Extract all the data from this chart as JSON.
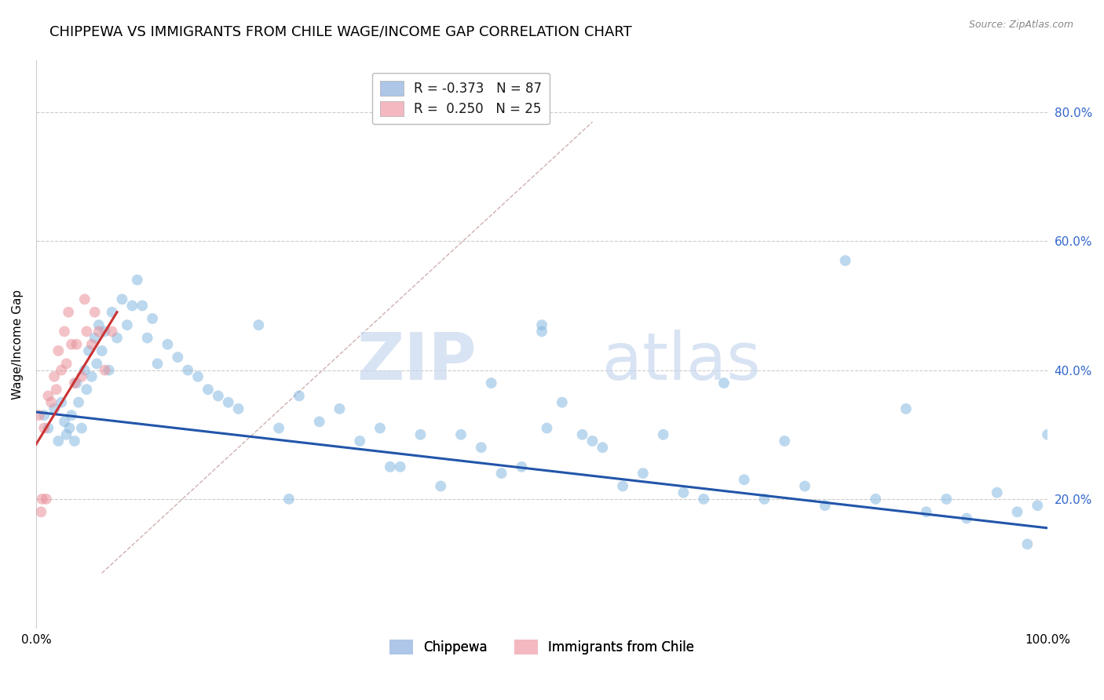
{
  "title": "CHIPPEWA VS IMMIGRANTS FROM CHILE WAGE/INCOME GAP CORRELATION CHART",
  "source": "Source: ZipAtlas.com",
  "ylabel": "Wage/Income Gap",
  "legend_entries": [
    {
      "label": "R = -0.373   N = 87",
      "color": "#aec6e8"
    },
    {
      "label": "R =  0.250   N = 25",
      "color": "#f4b8c1"
    }
  ],
  "legend_bottom": [
    {
      "label": "Chippewa",
      "color": "#aec6e8"
    },
    {
      "label": "Immigrants from Chile",
      "color": "#f4b8c1"
    }
  ],
  "blue_scatter_x": [
    0.008,
    0.012,
    0.018,
    0.022,
    0.025,
    0.028,
    0.03,
    0.033,
    0.035,
    0.038,
    0.04,
    0.042,
    0.045,
    0.048,
    0.05,
    0.052,
    0.055,
    0.058,
    0.06,
    0.062,
    0.065,
    0.068,
    0.072,
    0.075,
    0.08,
    0.085,
    0.09,
    0.095,
    0.1,
    0.105,
    0.11,
    0.115,
    0.12,
    0.13,
    0.14,
    0.15,
    0.16,
    0.17,
    0.18,
    0.19,
    0.2,
    0.22,
    0.24,
    0.26,
    0.28,
    0.3,
    0.32,
    0.34,
    0.36,
    0.38,
    0.4,
    0.42,
    0.44,
    0.46,
    0.48,
    0.5,
    0.52,
    0.54,
    0.56,
    0.58,
    0.6,
    0.62,
    0.64,
    0.66,
    0.68,
    0.7,
    0.72,
    0.74,
    0.76,
    0.78,
    0.8,
    0.83,
    0.86,
    0.88,
    0.9,
    0.92,
    0.95,
    0.97,
    0.98,
    0.99,
    1.0,
    0.5,
    0.505,
    0.35,
    0.25,
    0.45,
    0.55
  ],
  "blue_scatter_y": [
    0.33,
    0.31,
    0.34,
    0.29,
    0.35,
    0.32,
    0.3,
    0.31,
    0.33,
    0.29,
    0.38,
    0.35,
    0.31,
    0.4,
    0.37,
    0.43,
    0.39,
    0.45,
    0.41,
    0.47,
    0.43,
    0.46,
    0.4,
    0.49,
    0.45,
    0.51,
    0.47,
    0.5,
    0.54,
    0.5,
    0.45,
    0.48,
    0.41,
    0.44,
    0.42,
    0.4,
    0.39,
    0.37,
    0.36,
    0.35,
    0.34,
    0.47,
    0.31,
    0.36,
    0.32,
    0.34,
    0.29,
    0.31,
    0.25,
    0.3,
    0.22,
    0.3,
    0.28,
    0.24,
    0.25,
    0.46,
    0.35,
    0.3,
    0.28,
    0.22,
    0.24,
    0.3,
    0.21,
    0.2,
    0.38,
    0.23,
    0.2,
    0.29,
    0.22,
    0.19,
    0.57,
    0.2,
    0.34,
    0.18,
    0.2,
    0.17,
    0.21,
    0.18,
    0.13,
    0.19,
    0.3,
    0.47,
    0.31,
    0.25,
    0.2,
    0.38,
    0.29
  ],
  "pink_scatter_x": [
    0.003,
    0.006,
    0.008,
    0.01,
    0.012,
    0.015,
    0.018,
    0.02,
    0.022,
    0.025,
    0.028,
    0.03,
    0.032,
    0.035,
    0.038,
    0.04,
    0.045,
    0.048,
    0.05,
    0.055,
    0.058,
    0.062,
    0.068,
    0.075,
    0.005
  ],
  "pink_scatter_y": [
    0.33,
    0.2,
    0.31,
    0.2,
    0.36,
    0.35,
    0.39,
    0.37,
    0.43,
    0.4,
    0.46,
    0.41,
    0.49,
    0.44,
    0.38,
    0.44,
    0.39,
    0.51,
    0.46,
    0.44,
    0.49,
    0.46,
    0.4,
    0.46,
    0.18
  ],
  "blue_line_x": [
    0.0,
    1.0
  ],
  "blue_line_y": [
    0.335,
    0.155
  ],
  "pink_line_x": [
    0.0,
    0.08
  ],
  "pink_line_y": [
    0.285,
    0.49
  ],
  "diag_line_x": [
    0.065,
    0.55
  ],
  "diag_line_y": [
    0.085,
    0.785
  ],
  "watermark_zip": "ZIP",
  "watermark_atlas": "atlas",
  "xmin": 0.0,
  "xmax": 1.0,
  "ymin": 0.0,
  "ymax": 0.88,
  "title_fontsize": 13,
  "scatter_size": 100,
  "scatter_alpha": 0.55,
  "line_width": 2.2,
  "background_color": "#ffffff",
  "grid_color": "#cccccc",
  "blue_scatter_color": "#85b8e0",
  "pink_scatter_color": "#e89099",
  "blue_line_color": "#2255aa",
  "pink_line_color": "#cc3333",
  "diag_line_color": "#d0b0b0"
}
